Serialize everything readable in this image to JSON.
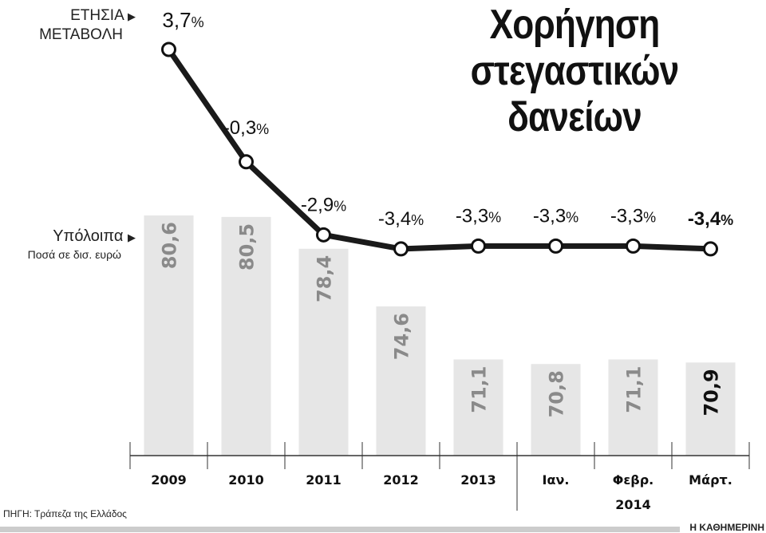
{
  "chart_data": {
    "type": "bar+line",
    "title": "Χορήγηση στεγαστικών δανείων",
    "categories": [
      "2009",
      "2010",
      "2011",
      "2012",
      "2013",
      "Ιαν.",
      "Φεβρ.",
      "Μάρτ."
    ],
    "category_group": {
      "label": "2014",
      "categories": [
        "Ιαν.",
        "Φεβρ.",
        "Μάρτ."
      ]
    },
    "bar_series": {
      "label": "Υπόλοιπα",
      "sublabel": "Ποσά σε δισ. ευρώ",
      "values": [
        80.6,
        80.5,
        78.4,
        74.6,
        71.1,
        70.8,
        71.1,
        70.9
      ],
      "value_labels": [
        "80,6",
        "80,5",
        "78,4",
        "74,6",
        "71,1",
        "70,8",
        "71,1",
        "70,9"
      ],
      "color": "#e6e6e6",
      "label_color": "#8a8a8a",
      "highlight_label_color": "#111111"
    },
    "line_series": {
      "label_line1": "ΕΤΗΣΙΑ",
      "label_line2": "ΜΕΤΑΒΟΛΗ",
      "values": [
        3.7,
        -0.3,
        -2.9,
        -3.4,
        -3.3,
        -3.3,
        -3.3,
        -3.4
      ],
      "value_labels": [
        "3,7",
        "-0,3",
        "-2,9",
        "-3,4",
        "-3,3",
        "-3,3",
        "-3,3",
        "-3,4"
      ],
      "unit": "%",
      "color": "#1a1a1a"
    },
    "grid": false
  },
  "source": "ΠΗΓΗ: Τράπεζα της Ελλάδος",
  "brand": "Η ΚΑΘΗΜΕΡΙΝΗ"
}
